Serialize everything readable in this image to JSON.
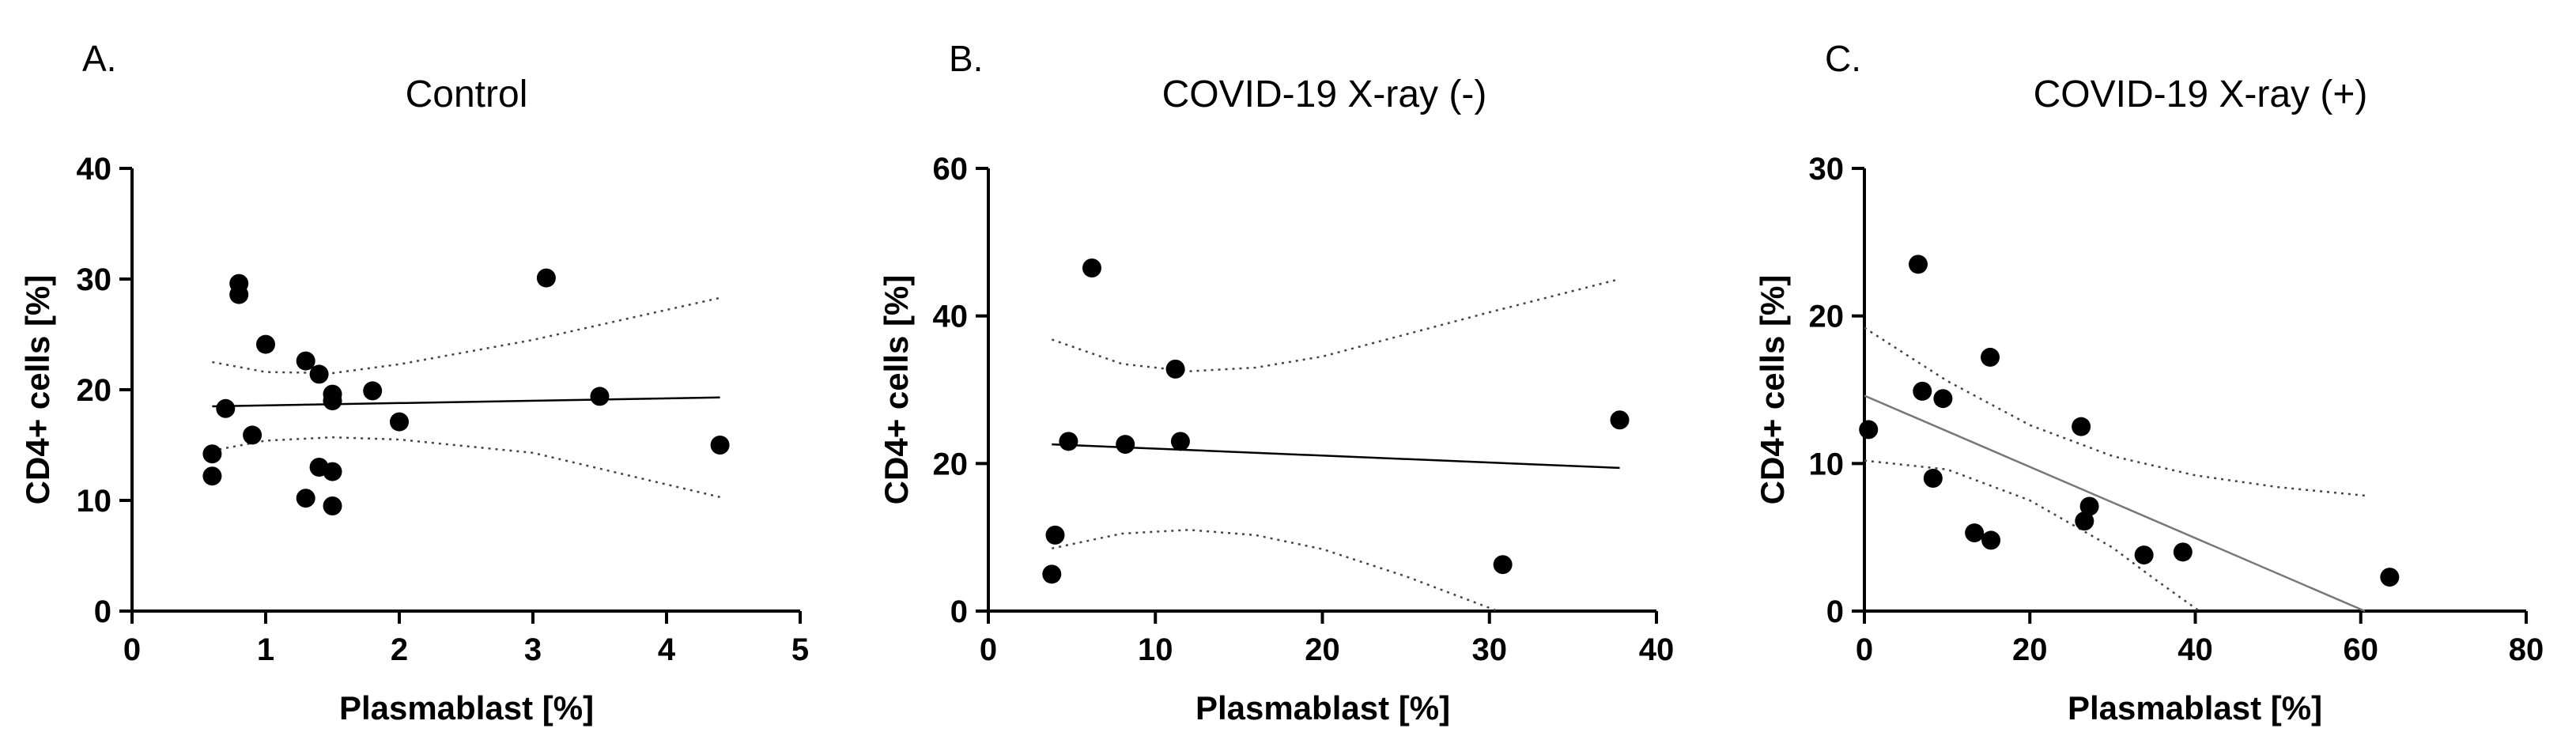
{
  "chart_data": [
    {
      "type": "scatter",
      "letter": "A.",
      "title": "Control",
      "xlabel": "Plasmablast [%]",
      "ylabel": "CD4+ cells [%]",
      "xlim": [
        0,
        5
      ],
      "ylim": [
        0,
        40
      ],
      "xticks": [
        0,
        1,
        2,
        3,
        4,
        5
      ],
      "yticks": [
        0,
        10,
        20,
        30,
        40
      ],
      "points": [
        {
          "x": 0.6,
          "y": 14.2
        },
        {
          "x": 0.6,
          "y": 12.2
        },
        {
          "x": 0.7,
          "y": 18.3
        },
        {
          "x": 0.8,
          "y": 29.6
        },
        {
          "x": 0.8,
          "y": 28.6
        },
        {
          "x": 0.9,
          "y": 15.9
        },
        {
          "x": 1.0,
          "y": 24.1
        },
        {
          "x": 1.3,
          "y": 22.6
        },
        {
          "x": 1.4,
          "y": 21.4
        },
        {
          "x": 1.3,
          "y": 10.2
        },
        {
          "x": 1.4,
          "y": 13.0
        },
        {
          "x": 1.5,
          "y": 12.6
        },
        {
          "x": 1.5,
          "y": 9.5
        },
        {
          "x": 1.5,
          "y": 19.6
        },
        {
          "x": 1.5,
          "y": 19.0
        },
        {
          "x": 1.8,
          "y": 19.9
        },
        {
          "x": 2.0,
          "y": 17.1
        },
        {
          "x": 3.1,
          "y": 30.1
        },
        {
          "x": 3.5,
          "y": 19.4
        },
        {
          "x": 4.4,
          "y": 15.0
        }
      ],
      "regression": {
        "x": [
          0.6,
          4.4
        ],
        "y": [
          18.5,
          19.3
        ]
      },
      "ci_upper": {
        "x": [
          0.6,
          1.0,
          1.5,
          2.0,
          3.0,
          4.4
        ],
        "y": [
          22.5,
          21.6,
          21.5,
          22.3,
          24.5,
          28.3
        ]
      },
      "ci_lower": {
        "x": [
          0.6,
          1.0,
          1.5,
          2.0,
          3.0,
          4.4
        ],
        "y": [
          14.5,
          15.4,
          15.7,
          15.5,
          14.3,
          10.3
        ]
      }
    },
    {
      "type": "scatter",
      "letter": "B.",
      "title": "COVID-19 X-ray (-)",
      "xlabel": "Plasmablast [%]",
      "ylabel": "CD4+ cells [%]",
      "xlim": [
        0,
        40
      ],
      "ylim": [
        0,
        60
      ],
      "xticks": [
        0,
        10,
        20,
        30,
        40
      ],
      "yticks": [
        0,
        20,
        40,
        60
      ],
      "points": [
        {
          "x": 3.8,
          "y": 5.0
        },
        {
          "x": 4.0,
          "y": 10.3
        },
        {
          "x": 4.8,
          "y": 23.0
        },
        {
          "x": 6.2,
          "y": 46.5
        },
        {
          "x": 8.2,
          "y": 22.6
        },
        {
          "x": 11.2,
          "y": 32.8
        },
        {
          "x": 11.5,
          "y": 23.0
        },
        {
          "x": 30.8,
          "y": 6.3
        },
        {
          "x": 37.8,
          "y": 25.9
        }
      ],
      "regression": {
        "x": [
          3.8,
          37.8
        ],
        "y": [
          22.6,
          19.4
        ]
      },
      "ci_upper": {
        "x": [
          3.8,
          8,
          12,
          16,
          20,
          25,
          30,
          37.8
        ],
        "y": [
          36.8,
          33.5,
          32.5,
          33.0,
          34.5,
          37.5,
          40.5,
          45.0
        ]
      },
      "ci_lower": {
        "x": [
          3.8,
          8,
          12,
          16,
          20,
          25,
          30.5
        ],
        "y": [
          8.5,
          10.5,
          11.0,
          10.3,
          8.4,
          4.7,
          0.0
        ]
      }
    },
    {
      "type": "scatter",
      "letter": "C.",
      "title": "COVID-19 X-ray (+)",
      "xlabel": "Plasmablast [%]",
      "ylabel": "CD4+ cells [%]",
      "xlim": [
        0,
        80
      ],
      "ylim": [
        0,
        30
      ],
      "xticks": [
        0,
        20,
        40,
        60,
        80
      ],
      "yticks": [
        0,
        10,
        20,
        30
      ],
      "points": [
        {
          "x": 0.5,
          "y": 12.3
        },
        {
          "x": 6.5,
          "y": 23.5
        },
        {
          "x": 7.0,
          "y": 14.9
        },
        {
          "x": 8.3,
          "y": 9.0
        },
        {
          "x": 9.5,
          "y": 14.4
        },
        {
          "x": 13.3,
          "y": 5.3
        },
        {
          "x": 15.2,
          "y": 17.2
        },
        {
          "x": 15.3,
          "y": 4.8
        },
        {
          "x": 26.2,
          "y": 12.5
        },
        {
          "x": 26.6,
          "y": 6.1
        },
        {
          "x": 27.2,
          "y": 7.1
        },
        {
          "x": 33.8,
          "y": 3.8
        },
        {
          "x": 38.5,
          "y": 4.0
        },
        {
          "x": 63.5,
          "y": 2.3
        }
      ],
      "regression": {
        "x": [
          0,
          60.5
        ],
        "y": [
          14.6,
          0.0
        ]
      },
      "ci_upper": {
        "x": [
          0,
          10,
          20,
          30,
          40,
          50,
          61
        ],
        "y": [
          19.2,
          15.6,
          12.6,
          10.5,
          9.2,
          8.4,
          7.8
        ]
      },
      "ci_lower": {
        "x": [
          0,
          10,
          20,
          30,
          35,
          40.5
        ],
        "y": [
          10.2,
          9.6,
          7.5,
          4.3,
          2.2,
          0.0
        ]
      }
    }
  ]
}
